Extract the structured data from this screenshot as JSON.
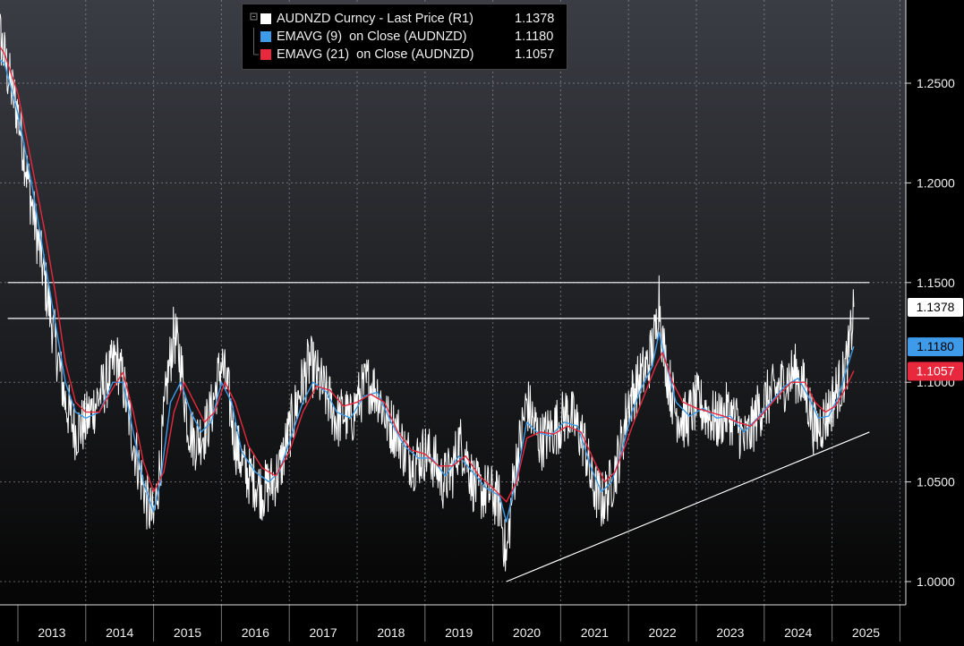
{
  "chart_data": {
    "type": "line",
    "title": "",
    "xlabel": "",
    "ylabel": "",
    "x_tick_labels": [
      "2013",
      "2014",
      "2015",
      "2016",
      "2017",
      "2018",
      "2019",
      "2020",
      "2021",
      "2022",
      "2023",
      "2024",
      "2025"
    ],
    "y_tick_labels": [
      "1.0000",
      "1.0500",
      "1.1000",
      "1.1500",
      "1.2000",
      "1.2500"
    ],
    "ylim": [
      0.985,
      1.29
    ],
    "xlim": [
      2012.6,
      2025.55
    ],
    "grid": true,
    "legend_position": "top-left",
    "y_axis_side": "right",
    "series": [
      {
        "name": "AUDNZD Curncy - Last Price (R1)",
        "last": "1.1378",
        "color": "#ffffff",
        "points": [
          [
            2012.6,
            1.27
          ],
          [
            2012.7,
            1.28
          ],
          [
            2012.85,
            1.255
          ],
          [
            2013.0,
            1.235
          ],
          [
            2013.2,
            1.19
          ],
          [
            2013.4,
            1.15
          ],
          [
            2013.55,
            1.12
          ],
          [
            2013.7,
            1.09
          ],
          [
            2013.85,
            1.075
          ],
          [
            2014.0,
            1.08
          ],
          [
            2014.15,
            1.09
          ],
          [
            2014.3,
            1.1
          ],
          [
            2014.45,
            1.112
          ],
          [
            2014.55,
            1.1
          ],
          [
            2014.7,
            1.07
          ],
          [
            2014.8,
            1.055
          ],
          [
            2014.9,
            1.04
          ],
          [
            2015.0,
            1.03
          ],
          [
            2015.1,
            1.06
          ],
          [
            2015.2,
            1.1
          ],
          [
            2015.3,
            1.125
          ],
          [
            2015.4,
            1.11
          ],
          [
            2015.5,
            1.08
          ],
          [
            2015.6,
            1.07
          ],
          [
            2015.75,
            1.075
          ],
          [
            2015.85,
            1.085
          ],
          [
            2016.0,
            1.11
          ],
          [
            2016.1,
            1.095
          ],
          [
            2016.2,
            1.07
          ],
          [
            2016.35,
            1.055
          ],
          [
            2016.5,
            1.05
          ],
          [
            2016.6,
            1.045
          ],
          [
            2016.75,
            1.05
          ],
          [
            2016.85,
            1.055
          ],
          [
            2017.0,
            1.075
          ],
          [
            2017.15,
            1.095
          ],
          [
            2017.3,
            1.11
          ],
          [
            2017.45,
            1.1
          ],
          [
            2017.6,
            1.09
          ],
          [
            2017.7,
            1.08
          ],
          [
            2017.8,
            1.085
          ],
          [
            2017.9,
            1.08
          ],
          [
            2018.0,
            1.09
          ],
          [
            2018.15,
            1.1
          ],
          [
            2018.3,
            1.095
          ],
          [
            2018.45,
            1.08
          ],
          [
            2018.6,
            1.075
          ],
          [
            2018.7,
            1.065
          ],
          [
            2018.85,
            1.06
          ],
          [
            2019.0,
            1.065
          ],
          [
            2019.15,
            1.06
          ],
          [
            2019.25,
            1.05
          ],
          [
            2019.4,
            1.055
          ],
          [
            2019.5,
            1.07
          ],
          [
            2019.6,
            1.065
          ],
          [
            2019.7,
            1.05
          ],
          [
            2019.8,
            1.045
          ],
          [
            2019.95,
            1.045
          ],
          [
            2020.1,
            1.04
          ],
          [
            2020.2,
            1.01
          ],
          [
            2020.3,
            1.05
          ],
          [
            2020.4,
            1.07
          ],
          [
            2020.5,
            1.09
          ],
          [
            2020.6,
            1.08
          ],
          [
            2020.7,
            1.07
          ],
          [
            2020.85,
            1.075
          ],
          [
            2021.0,
            1.08
          ],
          [
            2021.1,
            1.085
          ],
          [
            2021.2,
            1.08
          ],
          [
            2021.35,
            1.07
          ],
          [
            2021.45,
            1.05
          ],
          [
            2021.6,
            1.04
          ],
          [
            2021.7,
            1.045
          ],
          [
            2021.8,
            1.055
          ],
          [
            2021.9,
            1.07
          ],
          [
            2022.0,
            1.09
          ],
          [
            2022.15,
            1.1
          ],
          [
            2022.3,
            1.11
          ],
          [
            2022.4,
            1.125
          ],
          [
            2022.45,
            1.145
          ],
          [
            2022.5,
            1.12
          ],
          [
            2022.6,
            1.1
          ],
          [
            2022.7,
            1.085
          ],
          [
            2022.85,
            1.08
          ],
          [
            2023.0,
            1.09
          ],
          [
            2023.15,
            1.085
          ],
          [
            2023.3,
            1.08
          ],
          [
            2023.45,
            1.085
          ],
          [
            2023.6,
            1.08
          ],
          [
            2023.7,
            1.07
          ],
          [
            2023.8,
            1.075
          ],
          [
            2023.9,
            1.085
          ],
          [
            2024.0,
            1.09
          ],
          [
            2024.15,
            1.095
          ],
          [
            2024.3,
            1.1
          ],
          [
            2024.45,
            1.105
          ],
          [
            2024.55,
            1.1
          ],
          [
            2024.65,
            1.09
          ],
          [
            2024.75,
            1.075
          ],
          [
            2024.85,
            1.08
          ],
          [
            2024.95,
            1.085
          ],
          [
            2025.05,
            1.095
          ],
          [
            2025.15,
            1.1
          ],
          [
            2025.25,
            1.115
          ],
          [
            2025.32,
            1.1378
          ]
        ]
      },
      {
        "name": "EMAVG (9)  on Close (AUDNZD)",
        "last": "1.1180",
        "color": "#3d9bea",
        "points": [
          [
            2012.6,
            1.265
          ],
          [
            2012.8,
            1.26
          ],
          [
            2013.0,
            1.235
          ],
          [
            2013.2,
            1.2
          ],
          [
            2013.4,
            1.16
          ],
          [
            2013.55,
            1.13
          ],
          [
            2013.7,
            1.1
          ],
          [
            2013.85,
            1.085
          ],
          [
            2014.0,
            1.082
          ],
          [
            2014.2,
            1.085
          ],
          [
            2014.4,
            1.1
          ],
          [
            2014.55,
            1.1
          ],
          [
            2014.7,
            1.075
          ],
          [
            2014.85,
            1.05
          ],
          [
            2015.0,
            1.035
          ],
          [
            2015.1,
            1.05
          ],
          [
            2015.25,
            1.09
          ],
          [
            2015.4,
            1.1
          ],
          [
            2015.55,
            1.085
          ],
          [
            2015.7,
            1.075
          ],
          [
            2015.85,
            1.08
          ],
          [
            2016.0,
            1.1
          ],
          [
            2016.15,
            1.09
          ],
          [
            2016.3,
            1.065
          ],
          [
            2016.5,
            1.055
          ],
          [
            2016.7,
            1.05
          ],
          [
            2016.85,
            1.055
          ],
          [
            2017.0,
            1.07
          ],
          [
            2017.2,
            1.09
          ],
          [
            2017.35,
            1.1
          ],
          [
            2017.55,
            1.095
          ],
          [
            2017.7,
            1.085
          ],
          [
            2017.9,
            1.082
          ],
          [
            2018.1,
            1.093
          ],
          [
            2018.3,
            1.095
          ],
          [
            2018.5,
            1.08
          ],
          [
            2018.7,
            1.068
          ],
          [
            2018.9,
            1.062
          ],
          [
            2019.1,
            1.062
          ],
          [
            2019.3,
            1.053
          ],
          [
            2019.5,
            1.063
          ],
          [
            2019.7,
            1.055
          ],
          [
            2019.9,
            1.047
          ],
          [
            2020.1,
            1.043
          ],
          [
            2020.2,
            1.03
          ],
          [
            2020.35,
            1.052
          ],
          [
            2020.5,
            1.08
          ],
          [
            2020.65,
            1.075
          ],
          [
            2020.85,
            1.073
          ],
          [
            2021.05,
            1.08
          ],
          [
            2021.25,
            1.078
          ],
          [
            2021.45,
            1.057
          ],
          [
            2021.6,
            1.045
          ],
          [
            2021.75,
            1.05
          ],
          [
            2021.9,
            1.065
          ],
          [
            2022.05,
            1.085
          ],
          [
            2022.2,
            1.098
          ],
          [
            2022.35,
            1.108
          ],
          [
            2022.45,
            1.125
          ],
          [
            2022.55,
            1.11
          ],
          [
            2022.7,
            1.09
          ],
          [
            2022.9,
            1.083
          ],
          [
            2023.1,
            1.087
          ],
          [
            2023.3,
            1.082
          ],
          [
            2023.5,
            1.083
          ],
          [
            2023.7,
            1.075
          ],
          [
            2023.9,
            1.082
          ],
          [
            2024.1,
            1.09
          ],
          [
            2024.3,
            1.098
          ],
          [
            2024.5,
            1.102
          ],
          [
            2024.65,
            1.093
          ],
          [
            2024.8,
            1.082
          ],
          [
            2024.95,
            1.083
          ],
          [
            2025.1,
            1.093
          ],
          [
            2025.2,
            1.105
          ],
          [
            2025.32,
            1.118
          ]
        ]
      },
      {
        "name": "EMAVG (21)  on Close (AUDNZD)",
        "last": "1.1057",
        "color": "#e8283c",
        "points": [
          [
            2012.6,
            1.275
          ],
          [
            2012.8,
            1.265
          ],
          [
            2013.0,
            1.245
          ],
          [
            2013.2,
            1.21
          ],
          [
            2013.4,
            1.175
          ],
          [
            2013.55,
            1.145
          ],
          [
            2013.7,
            1.11
          ],
          [
            2013.85,
            1.09
          ],
          [
            2014.0,
            1.085
          ],
          [
            2014.2,
            1.085
          ],
          [
            2014.4,
            1.097
          ],
          [
            2014.55,
            1.105
          ],
          [
            2014.7,
            1.085
          ],
          [
            2014.85,
            1.06
          ],
          [
            2015.0,
            1.045
          ],
          [
            2015.15,
            1.055
          ],
          [
            2015.3,
            1.085
          ],
          [
            2015.45,
            1.1
          ],
          [
            2015.6,
            1.09
          ],
          [
            2015.75,
            1.08
          ],
          [
            2015.9,
            1.085
          ],
          [
            2016.05,
            1.1
          ],
          [
            2016.2,
            1.09
          ],
          [
            2016.4,
            1.068
          ],
          [
            2016.6,
            1.057
          ],
          [
            2016.8,
            1.053
          ],
          [
            2017.0,
            1.065
          ],
          [
            2017.2,
            1.085
          ],
          [
            2017.4,
            1.098
          ],
          [
            2017.6,
            1.096
          ],
          [
            2017.8,
            1.088
          ],
          [
            2018.0,
            1.09
          ],
          [
            2018.2,
            1.094
          ],
          [
            2018.4,
            1.09
          ],
          [
            2018.6,
            1.075
          ],
          [
            2018.8,
            1.066
          ],
          [
            2019.0,
            1.064
          ],
          [
            2019.2,
            1.058
          ],
          [
            2019.4,
            1.058
          ],
          [
            2019.6,
            1.063
          ],
          [
            2019.8,
            1.053
          ],
          [
            2020.0,
            1.047
          ],
          [
            2020.2,
            1.04
          ],
          [
            2020.35,
            1.05
          ],
          [
            2020.5,
            1.072
          ],
          [
            2020.7,
            1.075
          ],
          [
            2020.9,
            1.074
          ],
          [
            2021.1,
            1.078
          ],
          [
            2021.3,
            1.075
          ],
          [
            2021.5,
            1.06
          ],
          [
            2021.65,
            1.05
          ],
          [
            2021.8,
            1.055
          ],
          [
            2021.95,
            1.068
          ],
          [
            2022.1,
            1.082
          ],
          [
            2022.25,
            1.095
          ],
          [
            2022.4,
            1.108
          ],
          [
            2022.5,
            1.115
          ],
          [
            2022.65,
            1.1
          ],
          [
            2022.8,
            1.09
          ],
          [
            2023.0,
            1.087
          ],
          [
            2023.2,
            1.085
          ],
          [
            2023.4,
            1.083
          ],
          [
            2023.6,
            1.08
          ],
          [
            2023.8,
            1.078
          ],
          [
            2024.0,
            1.085
          ],
          [
            2024.2,
            1.093
          ],
          [
            2024.4,
            1.1
          ],
          [
            2024.6,
            1.1
          ],
          [
            2024.75,
            1.09
          ],
          [
            2024.9,
            1.085
          ],
          [
            2025.05,
            1.088
          ],
          [
            2025.2,
            1.097
          ],
          [
            2025.32,
            1.1057
          ]
        ]
      }
    ],
    "reference_lines": [
      {
        "type": "horizontal",
        "value": 1.15,
        "x_from": 2012.85,
        "x_to": 2025.55
      },
      {
        "type": "horizontal",
        "value": 1.132,
        "x_from": 2012.85,
        "x_to": 2025.55
      },
      {
        "type": "trendline",
        "from": [
          2020.2,
          1.0
        ],
        "to": [
          2025.55,
          1.075
        ]
      }
    ],
    "last_value_tags": [
      {
        "label": "1.1378",
        "value": 1.1378,
        "background": "#ffffff",
        "color": "#000000"
      },
      {
        "label": "1.1180",
        "value": 1.118,
        "background": "#3d9bea",
        "color": "#000000"
      },
      {
        "label": "1.1057",
        "value": 1.1057,
        "background": "#e8283c",
        "color": "#ffffff"
      }
    ]
  }
}
